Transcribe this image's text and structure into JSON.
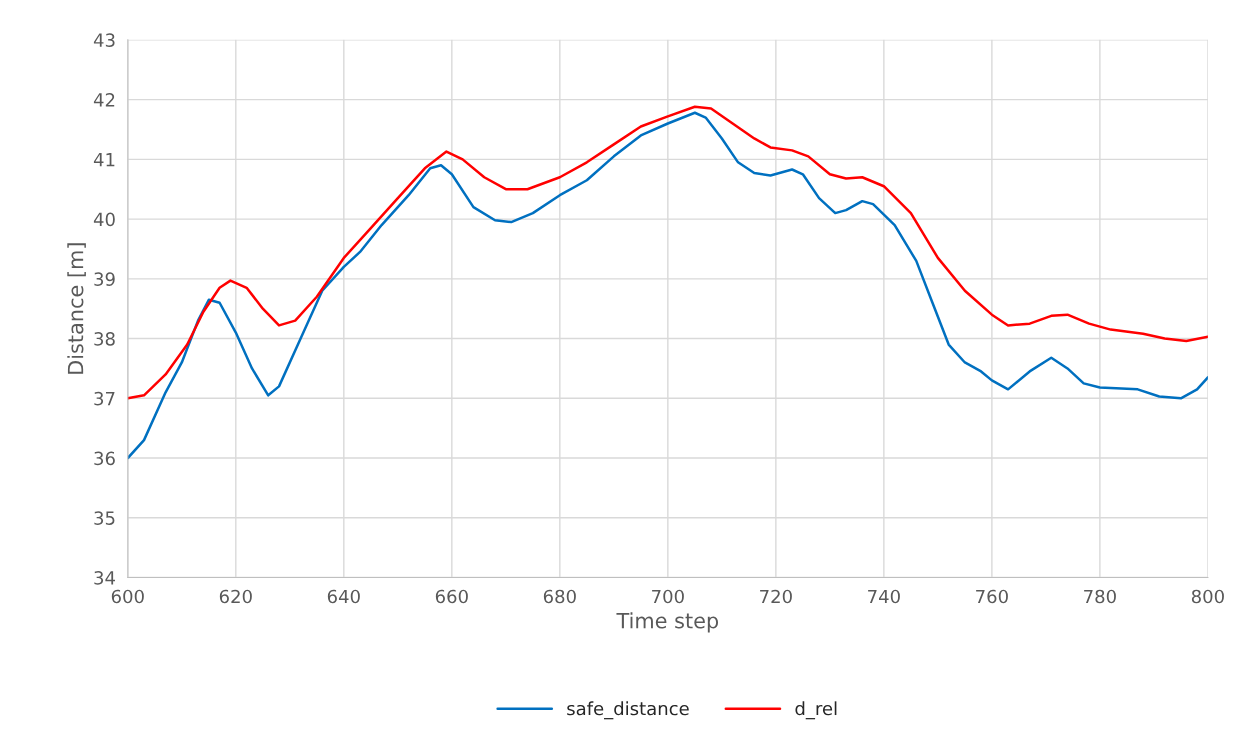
{
  "chart_data": {
    "type": "line",
    "xlabel": "Time step",
    "ylabel": "Distance [m]",
    "xlim": [
      600,
      800
    ],
    "xticks": [
      600,
      620,
      640,
      660,
      680,
      700,
      720,
      740,
      760,
      780,
      800
    ],
    "ylim": [
      34,
      43
    ],
    "yticks": [
      34,
      35,
      36,
      37,
      38,
      39,
      40,
      41,
      42,
      43
    ],
    "grid": true,
    "legend": "bottom",
    "marker": "none",
    "line_style": "solid",
    "series": [
      {
        "name": "safe_distance",
        "color": "#0070c0",
        "x": [
          600,
          603,
          607,
          610,
          613,
          615,
          617,
          620,
          623,
          626,
          628,
          632,
          636,
          640,
          643,
          647,
          652,
          656,
          658,
          660,
          664,
          668,
          671,
          675,
          680,
          685,
          690,
          695,
          700,
          705,
          707,
          710,
          713,
          716,
          719,
          723,
          725,
          728,
          731,
          733,
          736,
          738,
          742,
          746,
          749,
          752,
          755,
          758,
          760,
          763,
          767,
          771,
          774,
          777,
          780,
          787,
          791,
          795,
          798,
          800
        ],
        "values": [
          36.0,
          36.3,
          37.1,
          37.6,
          38.3,
          38.65,
          38.6,
          38.1,
          37.5,
          37.05,
          37.2,
          38.0,
          38.8,
          39.2,
          39.45,
          39.9,
          40.4,
          40.85,
          40.9,
          40.75,
          40.2,
          39.98,
          39.95,
          40.1,
          40.4,
          40.65,
          41.05,
          41.4,
          41.6,
          41.78,
          41.7,
          41.35,
          40.95,
          40.77,
          40.73,
          40.83,
          40.75,
          40.35,
          40.1,
          40.15,
          40.3,
          40.25,
          39.9,
          39.3,
          38.6,
          37.9,
          37.6,
          37.45,
          37.3,
          37.15,
          37.45,
          37.68,
          37.5,
          37.25,
          37.18,
          37.15,
          37.03,
          37.0,
          37.15,
          37.35
        ]
      },
      {
        "name": "d_rel",
        "color": "#ff0000",
        "x": [
          600,
          603,
          607,
          611,
          614,
          617,
          619,
          622,
          625,
          628,
          631,
          635,
          640,
          645,
          650,
          655,
          659,
          662,
          666,
          670,
          674,
          680,
          685,
          690,
          695,
          700,
          705,
          708,
          712,
          716,
          719,
          723,
          726,
          730,
          733,
          736,
          740,
          745,
          750,
          755,
          760,
          763,
          767,
          771,
          774,
          778,
          782,
          788,
          792,
          796,
          800
        ],
        "values": [
          37.0,
          37.05,
          37.4,
          37.9,
          38.45,
          38.85,
          38.97,
          38.85,
          38.5,
          38.22,
          38.3,
          38.7,
          39.35,
          39.85,
          40.35,
          40.85,
          41.13,
          41.0,
          40.7,
          40.5,
          40.5,
          40.7,
          40.95,
          41.25,
          41.55,
          41.72,
          41.88,
          41.85,
          41.6,
          41.35,
          41.2,
          41.15,
          41.05,
          40.75,
          40.68,
          40.7,
          40.55,
          40.1,
          39.35,
          38.8,
          38.4,
          38.22,
          38.25,
          38.38,
          38.4,
          38.25,
          38.15,
          38.08,
          38.0,
          37.96,
          38.03
        ]
      }
    ]
  }
}
